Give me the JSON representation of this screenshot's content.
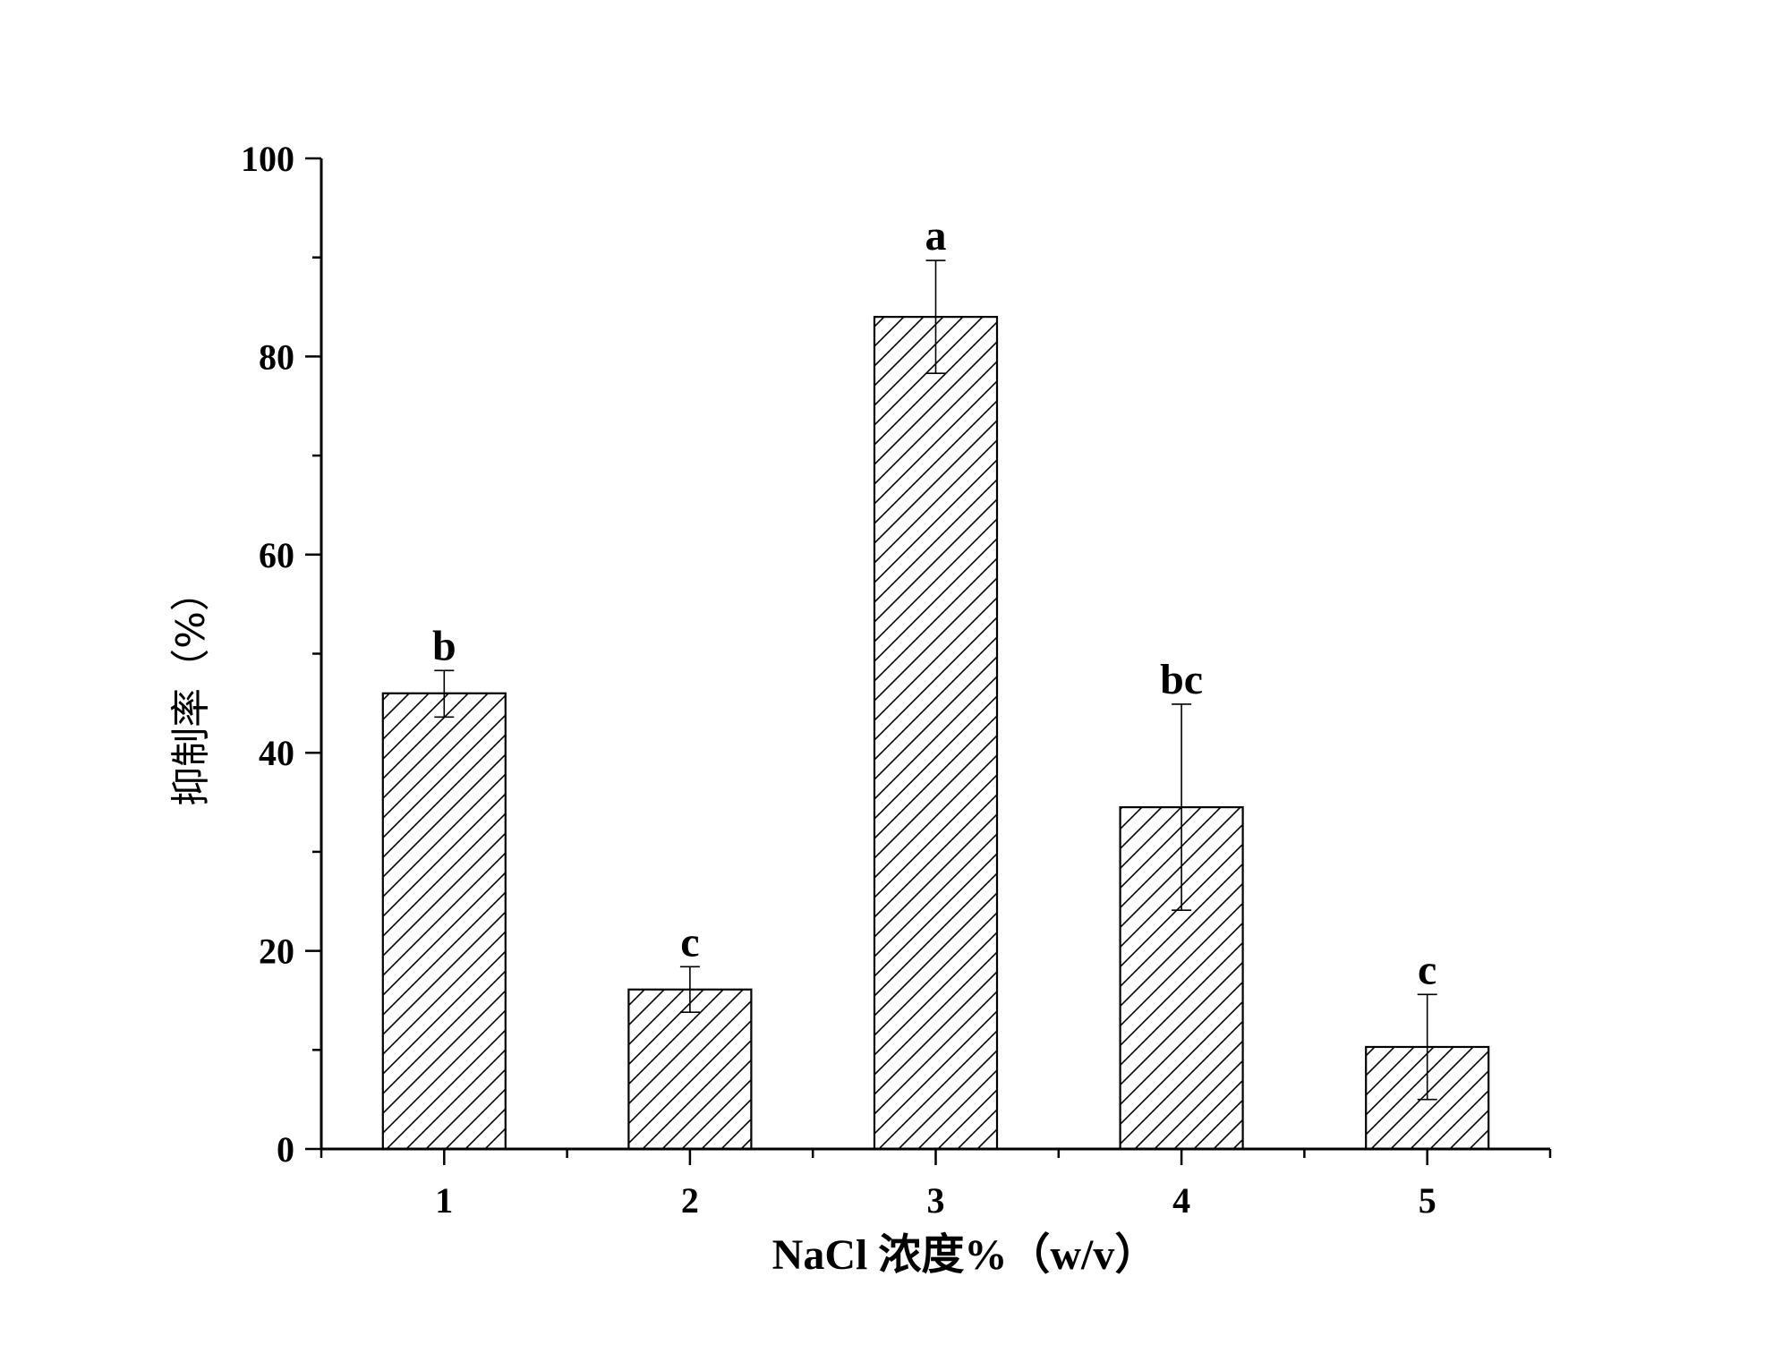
{
  "chart_data": {
    "type": "bar",
    "categories": [
      "1",
      "2",
      "3",
      "4",
      "5"
    ],
    "values": [
      46.0,
      16.1,
      84.0,
      34.5,
      10.3
    ],
    "error_upper": [
      48.3,
      18.4,
      89.7,
      44.9,
      15.6
    ],
    "error_lower": [
      43.6,
      13.8,
      78.3,
      24.1,
      5.0
    ],
    "significance_labels": [
      "b",
      "c",
      "a",
      "bc",
      "c"
    ],
    "xlabel": "NaCl 浓度%（w/v）",
    "ylabel": "抑制率（%）",
    "ylim": [
      0,
      100
    ],
    "yticks": [
      "0",
      "20",
      "40",
      "60",
      "80",
      "100"
    ],
    "fill": "diagonal-hatch",
    "grid": false,
    "colors": {
      "bar_fill": "#ffffff",
      "hatch": "#000000",
      "axis": "#000000"
    }
  }
}
